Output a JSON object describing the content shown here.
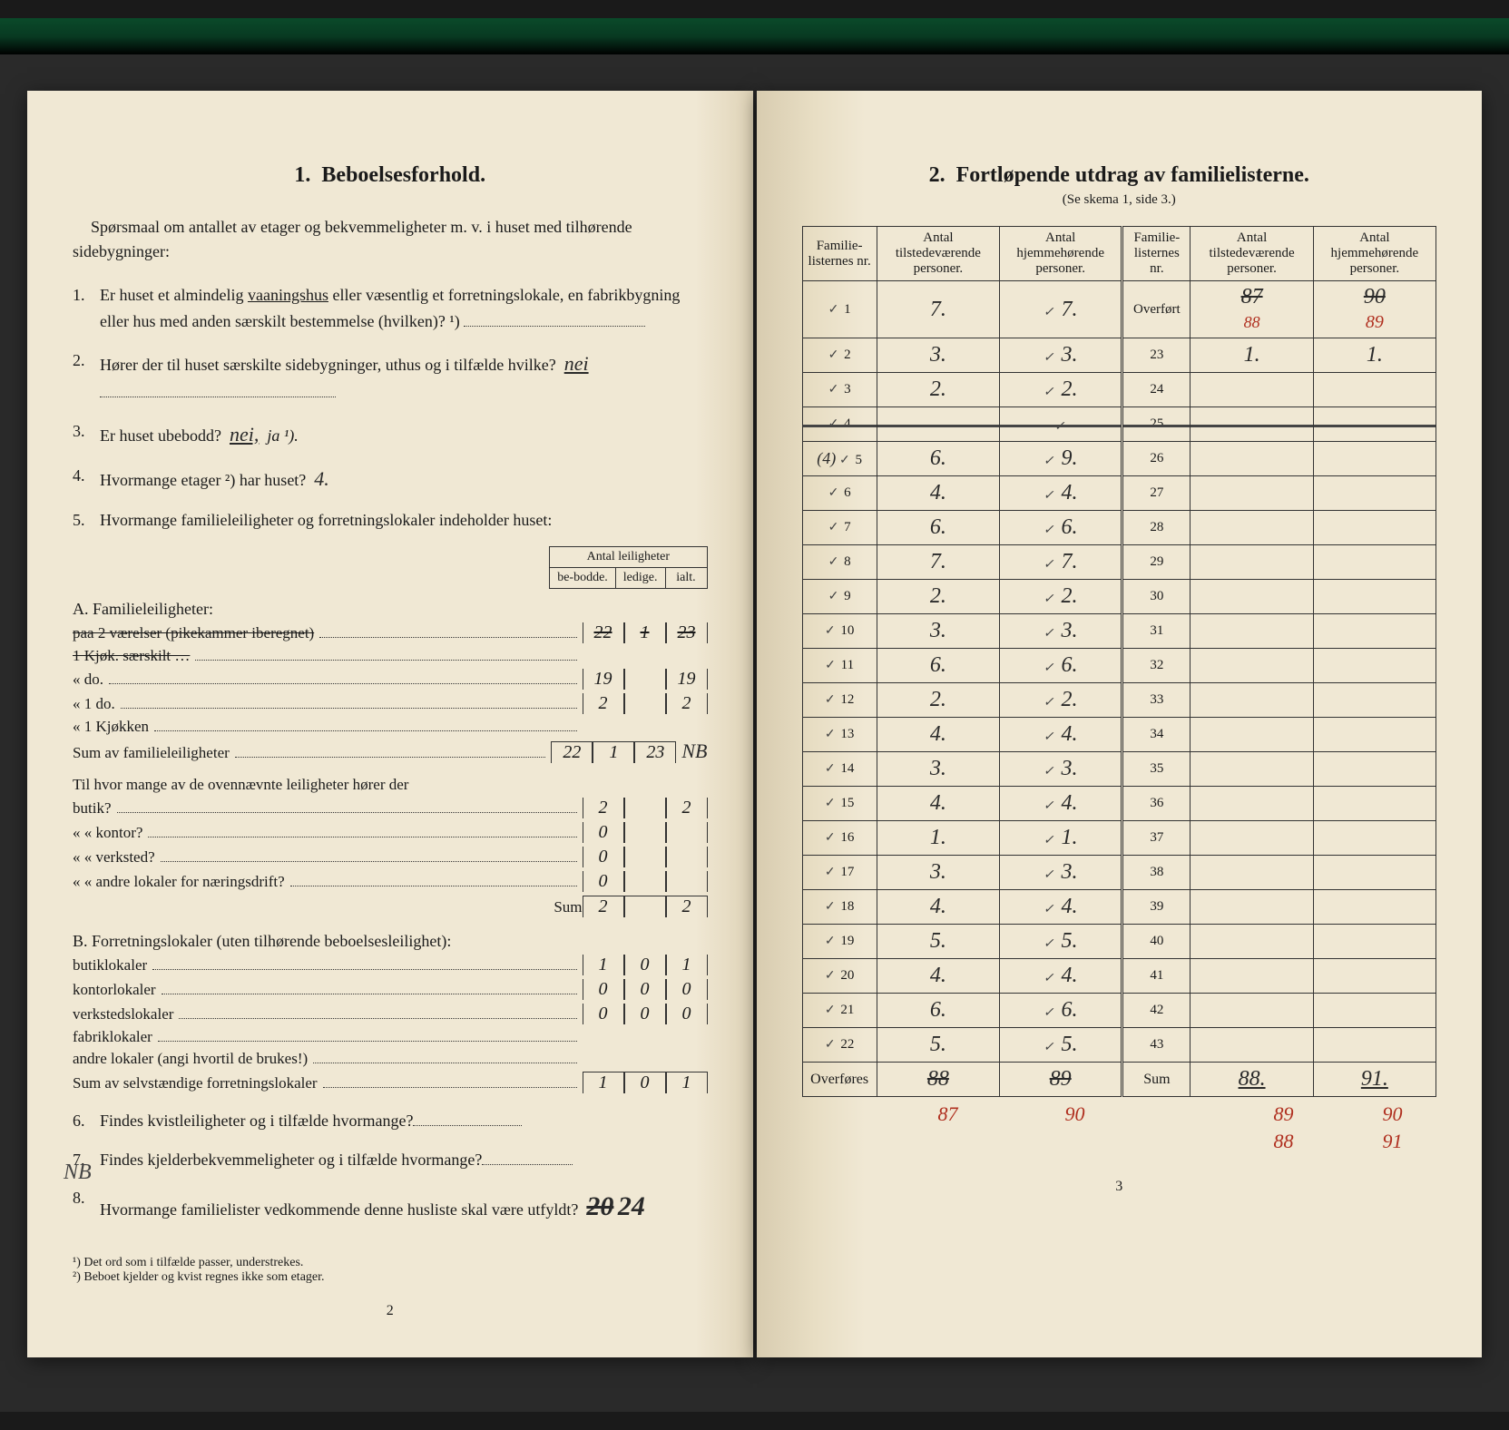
{
  "left": {
    "title_num": "1.",
    "title": "Beboelsesforhold.",
    "intro": "Spørsmaal om antallet av etager og bekvemmeligheter m. v. i huset med tilhørende sidebygninger:",
    "q1": "Er huset et almindelig vaaningshus eller væsentlig et forretningslokale, en fabrikbygning eller hus med anden særskilt bestemmelse (hvilken)? ¹)",
    "q2": "Hører der til huset særskilte sidebygninger, uthus og i tilfælde hvilke?",
    "q2_ans": "nei",
    "q3": "Er huset ubebodd?",
    "q3_ans": "nei,",
    "q3_suffix": "ja ¹).",
    "q4": "Hvormange etager ²) har huset?",
    "q4_ans": "4.",
    "q5": "Hvormange familieleiligheter og forretningslokaler indeholder huset:",
    "col_header": "Antal leiligheter",
    "col1": "be-bodde.",
    "col2": "ledige.",
    "col3": "ialt.",
    "A_label": "A. Familieleiligheter:",
    "A_rows": [
      {
        "lbl": "paa 2 værelser (pikekammer iberegnet)",
        "v": [
          "22",
          "1",
          "23"
        ],
        "struck": true
      },
      {
        "lbl": "1 Kjøk. særskilt …",
        "v": [
          "",
          "",
          ""
        ],
        "struck": true
      },
      {
        "lbl": "« do.",
        "v": [
          "19",
          "",
          "19"
        ]
      },
      {
        "lbl": "« 1 do.",
        "v": [
          "2",
          "",
          "2"
        ]
      },
      {
        "lbl": "« 1 Kjøkken",
        "v": [
          "",
          "",
          ""
        ]
      }
    ],
    "A_sum_lbl": "Sum av familieleiligheter",
    "A_sum": [
      "22",
      "1",
      "23"
    ],
    "A_sum_note": "NB",
    "butik_intro": "Til hvor mange av de ovennævnte leiligheter hører der",
    "butik_rows": [
      {
        "lbl": "butik?",
        "v": [
          "2",
          "",
          "2"
        ]
      },
      {
        "lbl": "« « kontor?",
        "v": [
          "0",
          "",
          ""
        ]
      },
      {
        "lbl": "« « verksted?",
        "v": [
          "0",
          "",
          ""
        ]
      },
      {
        "lbl": "« « andre lokaler for næringsdrift?",
        "v": [
          "0",
          "",
          ""
        ]
      }
    ],
    "butik_sum_lbl": "Sum",
    "butik_sum": [
      "2",
      "",
      "2"
    ],
    "B_label": "B. Forretningslokaler (uten tilhørende beboelsesleilighet):",
    "B_rows": [
      {
        "lbl": "butiklokaler",
        "v": [
          "1",
          "0",
          "1"
        ]
      },
      {
        "lbl": "kontorlokaler",
        "v": [
          "0",
          "0",
          "0"
        ]
      },
      {
        "lbl": "verkstedslokaler",
        "v": [
          "0",
          "0",
          "0"
        ]
      },
      {
        "lbl": "fabriklokaler",
        "v": [
          "",
          "",
          ""
        ]
      },
      {
        "lbl": "andre lokaler (angi hvortil de brukes!)",
        "v": [
          "",
          "",
          ""
        ]
      }
    ],
    "B_sum_lbl": "Sum av selvstændige forretningslokaler",
    "B_sum": [
      "1",
      "0",
      "1"
    ],
    "q6": "Findes kvistleiligheter og i tilfælde hvormange?",
    "q7": "Findes kjelderbekvemmeligheter og i tilfælde hvormange?",
    "q8": "Hvormange familielister vedkommende denne husliste skal være utfyldt?",
    "q8_ans": "24",
    "q8_margin": "NB",
    "fn1": "¹) Det ord som i tilfælde passer, understrekes.",
    "fn2": "²) Beboet kjelder og kvist regnes ikke som etager.",
    "page_num": "2"
  },
  "right": {
    "title_num": "2.",
    "title": "Fortløpende utdrag av familielisterne.",
    "subtitle": "(Se skema 1, side 3.)",
    "headers": {
      "c1": "Familie-listernes nr.",
      "c2": "Antal tilstedeværende personer.",
      "c3": "Antal hjemmehørende personer.",
      "c4": "Familie-listernes nr.",
      "c5": "Antal tilstedeværende personer.",
      "c6": "Antal hjemmehørende personer."
    },
    "rows": [
      {
        "n": "1",
        "a": "7.",
        "b": "7.",
        "rn": "Overført",
        "ra": "87",
        "rb": "90",
        "ra_red": "88",
        "rb_red": "89"
      },
      {
        "n": "2",
        "a": "3.",
        "b": "3.",
        "rn": "23",
        "ra": "1.",
        "rb": "1."
      },
      {
        "n": "3",
        "a": "2.",
        "b": "2.",
        "rn": "24",
        "ra": "",
        "rb": ""
      },
      {
        "n": "4",
        "a": "",
        "b": "",
        "rn": "25",
        "ra": "",
        "rb": "",
        "crossed": true
      },
      {
        "n": "5",
        "a": "6.",
        "b": "9.",
        "rn": "26",
        "ra": "",
        "rb": "",
        "prefix": "(4)"
      },
      {
        "n": "6",
        "a": "4.",
        "b": "4.",
        "rn": "27",
        "ra": "",
        "rb": ""
      },
      {
        "n": "7",
        "a": "6.",
        "b": "6.",
        "rn": "28",
        "ra": "",
        "rb": ""
      },
      {
        "n": "8",
        "a": "7.",
        "b": "7.",
        "rn": "29",
        "ra": "",
        "rb": ""
      },
      {
        "n": "9",
        "a": "2.",
        "b": "2.",
        "rn": "30",
        "ra": "",
        "rb": ""
      },
      {
        "n": "10",
        "a": "3.",
        "b": "3.",
        "rn": "31",
        "ra": "",
        "rb": ""
      },
      {
        "n": "11",
        "a": "6.",
        "b": "6.",
        "rn": "32",
        "ra": "",
        "rb": ""
      },
      {
        "n": "12",
        "a": "2.",
        "b": "2.",
        "rn": "33",
        "ra": "",
        "rb": ""
      },
      {
        "n": "13",
        "a": "4.",
        "b": "4.",
        "rn": "34",
        "ra": "",
        "rb": ""
      },
      {
        "n": "14",
        "a": "3.",
        "b": "3.",
        "rn": "35",
        "ra": "",
        "rb": ""
      },
      {
        "n": "15",
        "a": "4.",
        "b": "4.",
        "rn": "36",
        "ra": "",
        "rb": ""
      },
      {
        "n": "16",
        "a": "1.",
        "b": "1.",
        "rn": "37",
        "ra": "",
        "rb": ""
      },
      {
        "n": "17",
        "a": "3.",
        "b": "3.",
        "rn": "38",
        "ra": "",
        "rb": ""
      },
      {
        "n": "18",
        "a": "4.",
        "b": "4.",
        "rn": "39",
        "ra": "",
        "rb": ""
      },
      {
        "n": "19",
        "a": "5.",
        "b": "5.",
        "rn": "40",
        "ra": "",
        "rb": ""
      },
      {
        "n": "20",
        "a": "4.",
        "b": "4.",
        "rn": "41",
        "ra": "",
        "rb": ""
      },
      {
        "n": "21",
        "a": "6.",
        "b": "6.",
        "rn": "42",
        "ra": "",
        "rb": ""
      },
      {
        "n": "22",
        "a": "5.",
        "b": "5.",
        "rn": "43",
        "ra": "",
        "rb": ""
      }
    ],
    "overfores": "Overføres",
    "overfores_a": "88",
    "overfores_b": "89",
    "sum_lbl": "Sum",
    "sum_a": "88.",
    "sum_b": "91.",
    "red_notes": {
      "under_a": "87",
      "under_b": "90",
      "under_sa": "89",
      "under_sb": "90",
      "under_sa2": "88",
      "under_sb2": "91"
    },
    "page_num": "3"
  }
}
